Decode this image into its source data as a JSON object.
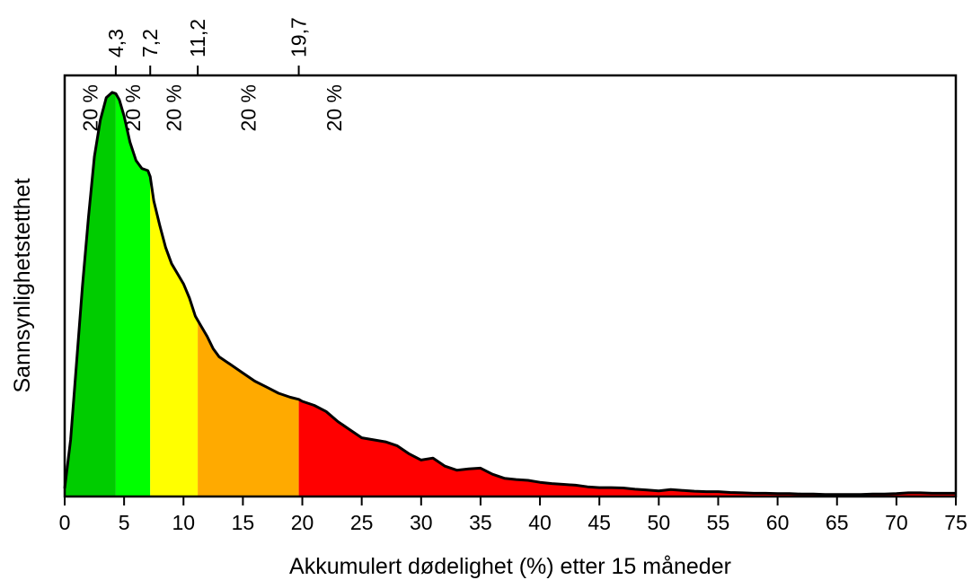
{
  "chart_data": {
    "type": "area",
    "xlabel": "Akkumulert dødelighet (%) etter 15 måneder",
    "ylabel": "Sannsynlighetstetthet",
    "xlim": [
      0,
      75
    ],
    "ylim": [
      0,
      1.04
    ],
    "x_ticks": [
      0,
      5,
      10,
      15,
      20,
      25,
      30,
      35,
      40,
      45,
      50,
      55,
      60,
      65,
      70,
      75
    ],
    "x_tick_labels": [
      "0",
      "5",
      "10",
      "15",
      "20",
      "25",
      "30",
      "35",
      "40",
      "45",
      "50",
      "55",
      "60",
      "65",
      "70",
      "75"
    ],
    "quantiles": [
      {
        "value": 4.3,
        "label": "4,3"
      },
      {
        "value": 7.2,
        "label": "7,2"
      },
      {
        "value": 11.2,
        "label": "11,2"
      },
      {
        "value": 19.7,
        "label": "19,7"
      }
    ],
    "bands": [
      {
        "from": 0,
        "to": 4.3,
        "color": "#00CC00",
        "label": "20 %"
      },
      {
        "from": 4.3,
        "to": 7.2,
        "color": "#00FF00",
        "label": "20 %"
      },
      {
        "from": 7.2,
        "to": 11.2,
        "color": "#FFFF00",
        "label": "20 %"
      },
      {
        "from": 11.2,
        "to": 19.7,
        "color": "#FFAA00",
        "label": "20 %"
      },
      {
        "from": 19.7,
        "to": 75,
        "color": "#FF0000",
        "label": "20 %"
      }
    ],
    "density": {
      "x": [
        0,
        0.5,
        1,
        1.5,
        2,
        2.5,
        3,
        3.5,
        4,
        4.3,
        4.6,
        5,
        5.5,
        6,
        6.5,
        7,
        7.2,
        7.5,
        8,
        8.5,
        9,
        9.5,
        10,
        10.5,
        11,
        11.2,
        11.5,
        12,
        12.5,
        13,
        14,
        15,
        16,
        17,
        18,
        19,
        19.7,
        20,
        21,
        22,
        23,
        24,
        25,
        26,
        27,
        28,
        29,
        30,
        31,
        32,
        33,
        34,
        35,
        36,
        37,
        38,
        39,
        40,
        41,
        42,
        43,
        44,
        45,
        46,
        47,
        48,
        49,
        50,
        51,
        52,
        53,
        54,
        55,
        56,
        57,
        58,
        59,
        60,
        61,
        62,
        63,
        64,
        65,
        66,
        67,
        68,
        69,
        70,
        71,
        72,
        73,
        74,
        75
      ],
      "y": [
        0.02,
        0.14,
        0.33,
        0.52,
        0.69,
        0.84,
        0.93,
        0.985,
        0.998,
        0.995,
        0.98,
        0.94,
        0.875,
        0.83,
        0.81,
        0.805,
        0.79,
        0.73,
        0.67,
        0.615,
        0.575,
        0.55,
        0.525,
        0.49,
        0.445,
        0.435,
        0.42,
        0.395,
        0.365,
        0.345,
        0.325,
        0.305,
        0.285,
        0.27,
        0.255,
        0.245,
        0.24,
        0.235,
        0.225,
        0.21,
        0.185,
        0.165,
        0.145,
        0.14,
        0.135,
        0.125,
        0.105,
        0.09,
        0.095,
        0.075,
        0.065,
        0.068,
        0.07,
        0.055,
        0.045,
        0.042,
        0.04,
        0.035,
        0.032,
        0.03,
        0.028,
        0.024,
        0.022,
        0.022,
        0.021,
        0.018,
        0.016,
        0.014,
        0.017,
        0.015,
        0.013,
        0.012,
        0.012,
        0.01,
        0.009,
        0.008,
        0.008,
        0.007,
        0.007,
        0.006,
        0.006,
        0.005,
        0.005,
        0.005,
        0.005,
        0.006,
        0.006,
        0.007,
        0.009,
        0.009,
        0.008,
        0.008,
        0.008
      ]
    }
  }
}
